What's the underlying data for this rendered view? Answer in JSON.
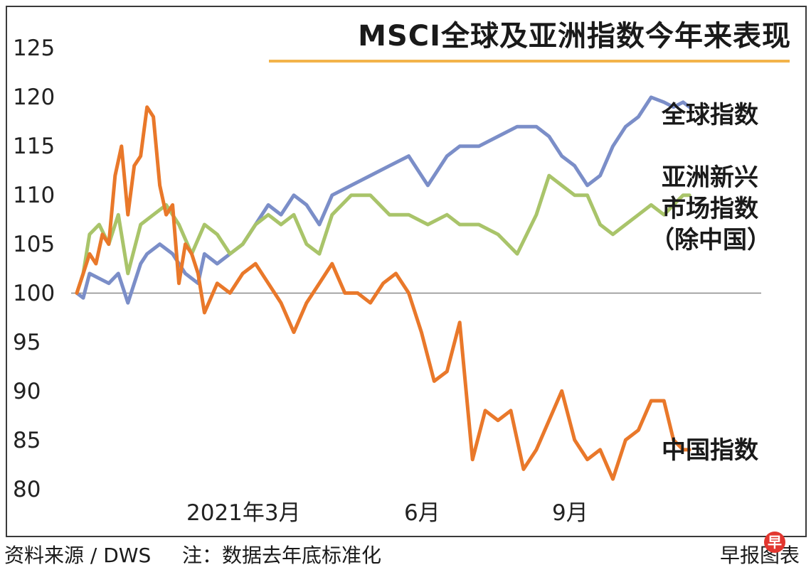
{
  "chart_data": {
    "type": "line",
    "title": "MSCI全球及亚洲指数今年来表现",
    "ylim": [
      80,
      125
    ],
    "yticks": [
      "125",
      "120",
      "115",
      "110",
      "105",
      "100",
      "95",
      "90",
      "85",
      "80"
    ],
    "xticks": [
      {
        "label": "2021年3月",
        "x": 2.0
      },
      {
        "label": "6月",
        "x": 5.0
      },
      {
        "label": "9月",
        "x": 8.0
      }
    ],
    "xlim": [
      0,
      10.1
    ],
    "reference_line": 100,
    "grid": false,
    "series": [
      {
        "name": "全球指数",
        "color": "#7b8ec8",
        "x": [
          0,
          0.1,
          0.2,
          0.35,
          0.5,
          0.65,
          0.8,
          1.0,
          1.1,
          1.3,
          1.5,
          1.7,
          1.9,
          2.0,
          2.2,
          2.4,
          2.6,
          2.8,
          3.0,
          3.2,
          3.4,
          3.6,
          3.8,
          4.0,
          4.3,
          4.6,
          4.9,
          5.2,
          5.5,
          5.8,
          6.0,
          6.3,
          6.6,
          6.9,
          7.2,
          7.4,
          7.6,
          7.8,
          8.0,
          8.2,
          8.4,
          8.6,
          8.8,
          9.0,
          9.2,
          9.35,
          9.5,
          9.6
        ],
        "y": [
          100,
          99.5,
          102,
          101.5,
          101,
          102,
          99,
          103,
          104,
          105,
          104,
          102,
          101,
          104,
          103,
          104,
          105,
          107,
          109,
          108,
          110,
          109,
          107,
          110,
          111,
          112,
          113,
          114,
          111,
          114,
          115,
          115,
          116,
          117,
          117,
          116,
          114,
          113,
          111,
          112,
          115,
          117,
          118,
          120,
          119.5,
          119,
          119.5,
          119
        ]
      },
      {
        "name": "亚洲新兴市场指数（除中国）",
        "color": "#a9c46a",
        "x": [
          0,
          0.1,
          0.2,
          0.35,
          0.5,
          0.65,
          0.8,
          1.0,
          1.2,
          1.4,
          1.6,
          1.8,
          2.0,
          2.2,
          2.4,
          2.6,
          2.8,
          3.0,
          3.2,
          3.4,
          3.6,
          3.8,
          4.0,
          4.3,
          4.6,
          4.9,
          5.2,
          5.5,
          5.8,
          6.0,
          6.3,
          6.6,
          6.9,
          7.2,
          7.4,
          7.6,
          7.8,
          8.0,
          8.2,
          8.4,
          8.6,
          8.8,
          9.0,
          9.2,
          9.35,
          9.5,
          9.6
        ],
        "y": [
          100,
          102,
          106,
          107,
          105,
          108,
          102,
          107,
          108,
          109,
          107,
          104,
          107,
          106,
          104,
          105,
          107,
          108,
          107,
          108,
          105,
          104,
          108,
          110,
          110,
          108,
          108,
          107,
          108,
          107,
          107,
          106,
          104,
          108,
          112,
          111,
          110,
          110,
          107,
          106,
          107,
          108,
          109,
          108,
          109,
          110,
          110
        ]
      },
      {
        "name": "中国指数",
        "color": "#e9782a",
        "x": [
          0,
          0.1,
          0.2,
          0.3,
          0.4,
          0.5,
          0.6,
          0.7,
          0.8,
          0.9,
          1.0,
          1.1,
          1.2,
          1.3,
          1.4,
          1.5,
          1.6,
          1.7,
          1.8,
          1.9,
          2.0,
          2.2,
          2.4,
          2.6,
          2.8,
          3.0,
          3.2,
          3.4,
          3.6,
          3.8,
          4.0,
          4.2,
          4.4,
          4.6,
          4.8,
          5.0,
          5.2,
          5.4,
          5.6,
          5.8,
          6.0,
          6.2,
          6.4,
          6.6,
          6.8,
          7.0,
          7.2,
          7.4,
          7.6,
          7.8,
          8.0,
          8.2,
          8.4,
          8.6,
          8.8,
          9.0,
          9.2,
          9.35,
          9.5,
          9.6
        ],
        "y": [
          100,
          102,
          104,
          103,
          106,
          105,
          112,
          115,
          108,
          113,
          114,
          119,
          118,
          111,
          108,
          109,
          101,
          105,
          104,
          102,
          98,
          101,
          100,
          102,
          103,
          101,
          99,
          96,
          99,
          101,
          103,
          100,
          100,
          99,
          101,
          102,
          100,
          96,
          91,
          92,
          97,
          83,
          88,
          87,
          88,
          82,
          84,
          87,
          90,
          85,
          83,
          84,
          81,
          85,
          86,
          89,
          89,
          85,
          84,
          84
        ]
      }
    ]
  },
  "labels": {
    "global": "全球指数",
    "asia_line1": "亚洲新兴",
    "asia_line2": "市场指数",
    "asia_line3": "（除中国）",
    "china": "中国指数"
  },
  "footer": {
    "source": "资料来源 / DWS",
    "note": "注：数据去年底标准化",
    "brand": "早报图表",
    "logo_char": "早"
  }
}
